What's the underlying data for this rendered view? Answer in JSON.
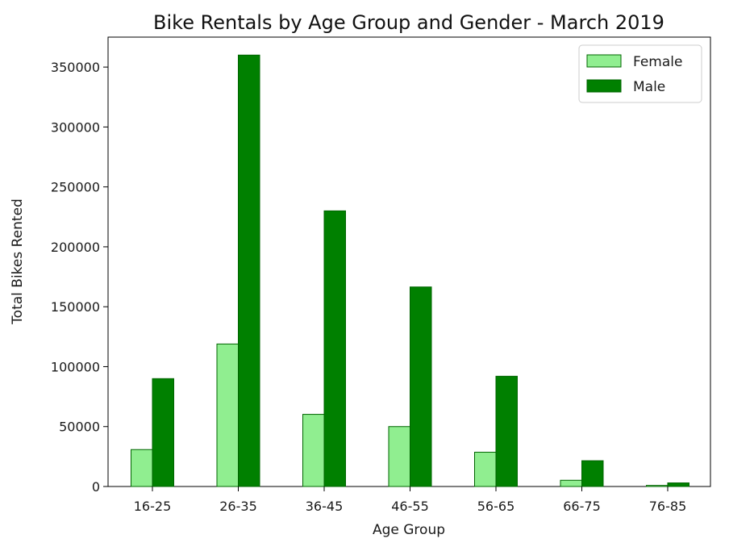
{
  "chart_data": {
    "type": "bar",
    "title": "Bike Rentals by Age Group and Gender - March 2019",
    "xlabel": "Age Group",
    "ylabel": "Total Bikes Rented",
    "categories": [
      "16-25",
      "26-35",
      "36-45",
      "46-55",
      "56-65",
      "66-75",
      "76-85"
    ],
    "series": [
      {
        "name": "Female",
        "color": "#90ee90",
        "values": [
          30800,
          118900,
          60200,
          50000,
          28600,
          5200,
          900
        ]
      },
      {
        "name": "Male",
        "color": "#008000",
        "values": [
          90000,
          360000,
          230000,
          166500,
          92000,
          21500,
          3000
        ]
      }
    ],
    "ylim": [
      0,
      375000
    ],
    "yticks": [
      0,
      50000,
      100000,
      150000,
      200000,
      250000,
      300000,
      350000
    ],
    "grid": false,
    "legend_position": "top-right",
    "bar_edge_color": "#006400"
  }
}
